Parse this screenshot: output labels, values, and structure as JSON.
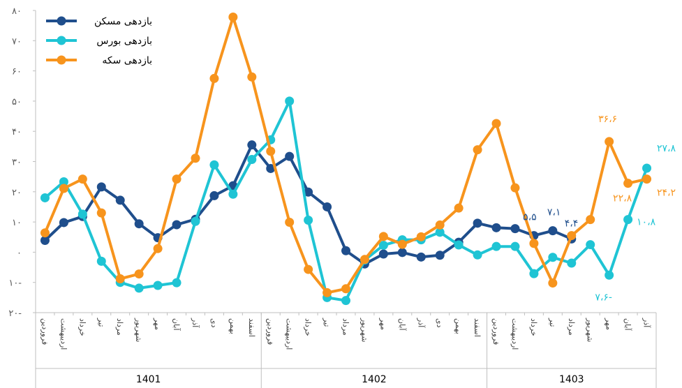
{
  "chart_data": {
    "type": "line",
    "title": "",
    "xlabel": "",
    "ylabel": "",
    "ylim": [
      -20,
      80
    ],
    "yticks": [
      80,
      70,
      60,
      50,
      40,
      30,
      20,
      10,
      0,
      -10,
      -20
    ],
    "ytick_labels": [
      "۸۰",
      "۷۰",
      "۶۰",
      "۵۰",
      "۴۰",
      "۳۰",
      "۲۰",
      "۱۰",
      "۰",
      "۱۰-",
      "۲۰-"
    ],
    "grid": false,
    "legend": "top-left",
    "categories": [
      "فروردین",
      "اردیبهشت",
      "خرداد",
      "تیر",
      "مرداد",
      "شهریور",
      "مهر",
      "آبان",
      "آذر",
      "دی",
      "بهمن",
      "اسفند",
      "فروردین",
      "اردیبهشت",
      "خرداد",
      "تیر",
      "مرداد",
      "شهریور",
      "مهر",
      "آبان",
      "آذر",
      "دی",
      "بهمن",
      "اسفند",
      "فروردین",
      "اردیبهشت",
      "خرداد",
      "تیر",
      "مرداد",
      "شهریور",
      "مهر",
      "آبان",
      "آذر"
    ],
    "groups": [
      {
        "label": "1401",
        "count": 12
      },
      {
        "label": "1402",
        "count": 12
      },
      {
        "label": "1403",
        "count": 9
      }
    ],
    "series": [
      {
        "name": "بازدهی مسکن",
        "color": "#1F4E8C",
        "values": [
          3.9,
          9.8,
          11.8,
          21.6,
          17.2,
          9.4,
          4.8,
          9.1,
          10.9,
          18.7,
          22.0,
          35.5,
          27.7,
          31.7,
          19.9,
          15.0,
          0.5,
          -3.9,
          -0.6,
          -0.1,
          -1.6,
          -1.0,
          3.3,
          9.6,
          8.1,
          7.8,
          5.5,
          7.1,
          4.4,
          null,
          null,
          null,
          null
        ]
      },
      {
        "name": "بازدهی بورس",
        "color": "#1FC4D4",
        "values": [
          18.0,
          23.3,
          12.6,
          -3.0,
          -10.0,
          -11.9,
          -11.0,
          -10.1,
          10.2,
          28.9,
          19.2,
          30.7,
          37.2,
          50.0,
          10.6,
          -15.0,
          -16.0,
          -2.6,
          2.3,
          4.1,
          4.1,
          6.6,
          2.4,
          -0.9,
          1.9,
          1.9,
          -7.1,
          -1.7,
          -3.6,
          2.5,
          -7.6,
          10.8,
          27.8
        ]
      },
      {
        "name": "بازدهی سکه",
        "color": "#F7941D",
        "values": [
          6.4,
          21.1,
          24.2,
          13.0,
          -8.8,
          -7.2,
          1.2,
          24.2,
          31.1,
          57.5,
          77.8,
          58.0,
          33.4,
          9.9,
          -5.7,
          -13.4,
          -12.1,
          -2.4,
          5.2,
          2.6,
          5.1,
          9.0,
          14.6,
          33.9,
          42.6,
          21.3,
          2.9,
          -10.2,
          5.5,
          10.8,
          36.6,
          22.8,
          24.2
        ]
      }
    ],
    "data_labels": [
      {
        "series": 0,
        "index": 26,
        "text": "۵،۵"
      },
      {
        "series": 0,
        "index": 27,
        "text": "۷،۱"
      },
      {
        "series": 0,
        "index": 28,
        "text": "۴،۴"
      },
      {
        "series": 1,
        "index": 30,
        "text": "۷،۶-"
      },
      {
        "series": 1,
        "index": 31,
        "text": "۱۰،۸"
      },
      {
        "series": 1,
        "index": 32,
        "text": "۲۷،۸"
      },
      {
        "series": 2,
        "index": 30,
        "text": "۳۶،۶"
      },
      {
        "series": 2,
        "index": 31,
        "text": "۲۲،۸"
      },
      {
        "series": 2,
        "index": 32,
        "text": "۲۴،۲"
      }
    ]
  }
}
